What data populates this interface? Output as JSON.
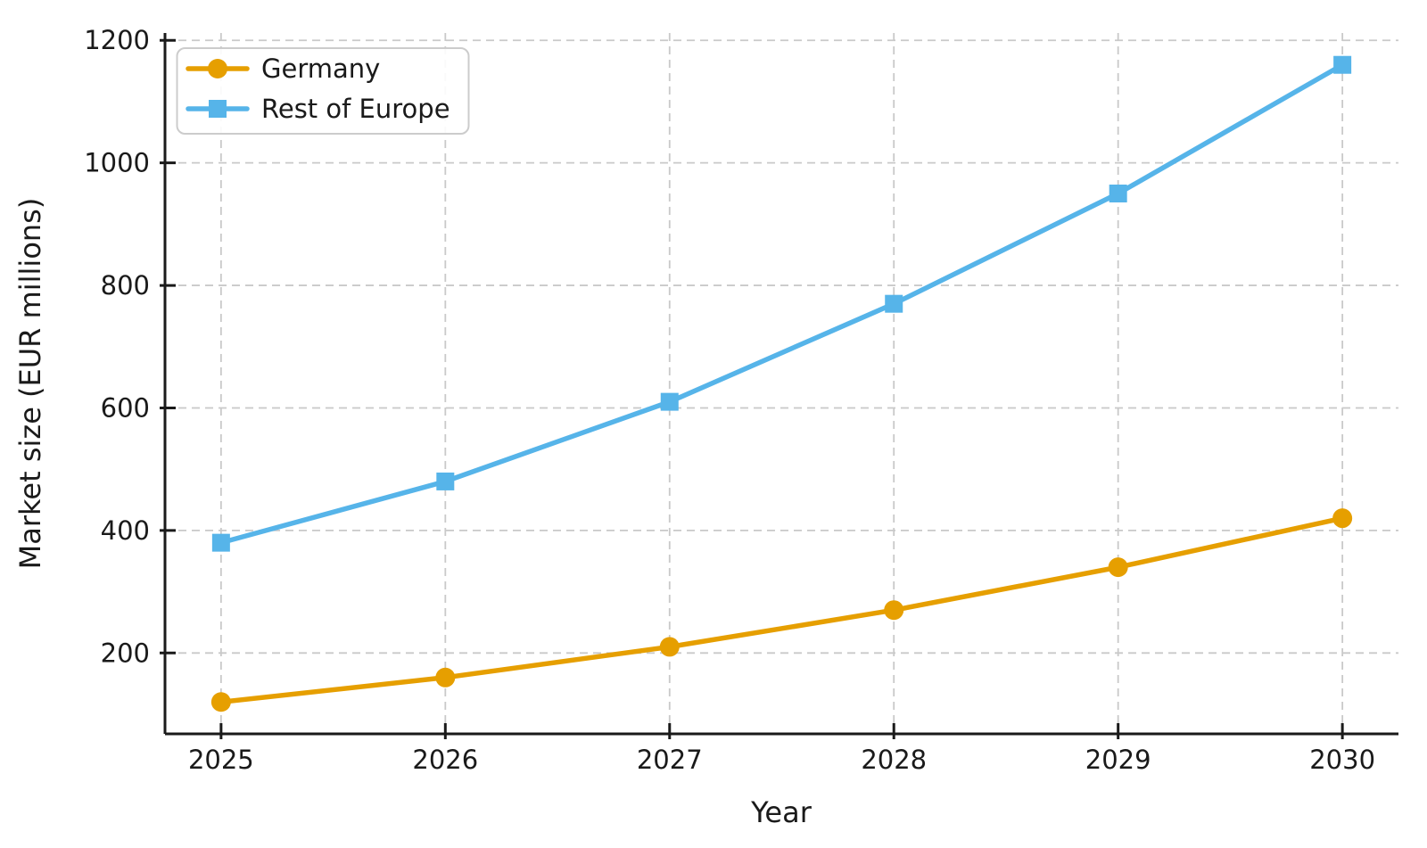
{
  "chart_data": {
    "type": "line",
    "title": "",
    "xlabel": "Year",
    "ylabel": "Market size (EUR millions)",
    "x": [
      2025,
      2026,
      2027,
      2028,
      2029,
      2030
    ],
    "series": [
      {
        "name": "Germany",
        "marker": "circle",
        "color": "#E69F00",
        "values": [
          120,
          160,
          210,
          270,
          340,
          420
        ]
      },
      {
        "name": "Rest of Europe",
        "marker": "square",
        "color": "#56B4E9",
        "values": [
          380,
          480,
          610,
          770,
          950,
          1160
        ]
      }
    ],
    "yticks": [
      200,
      400,
      600,
      800,
      1000,
      1200
    ],
    "xlim": [
      2024.75,
      2030.25
    ],
    "ylim": [
      68,
      1212
    ],
    "grid": true,
    "grid_style": "dashed",
    "legend_position": "upper-left",
    "colors": {
      "grid": "#c9c9c9",
      "axis": "#1a1a1a",
      "text": "#1a1a1a",
      "background": "#ffffff"
    }
  }
}
